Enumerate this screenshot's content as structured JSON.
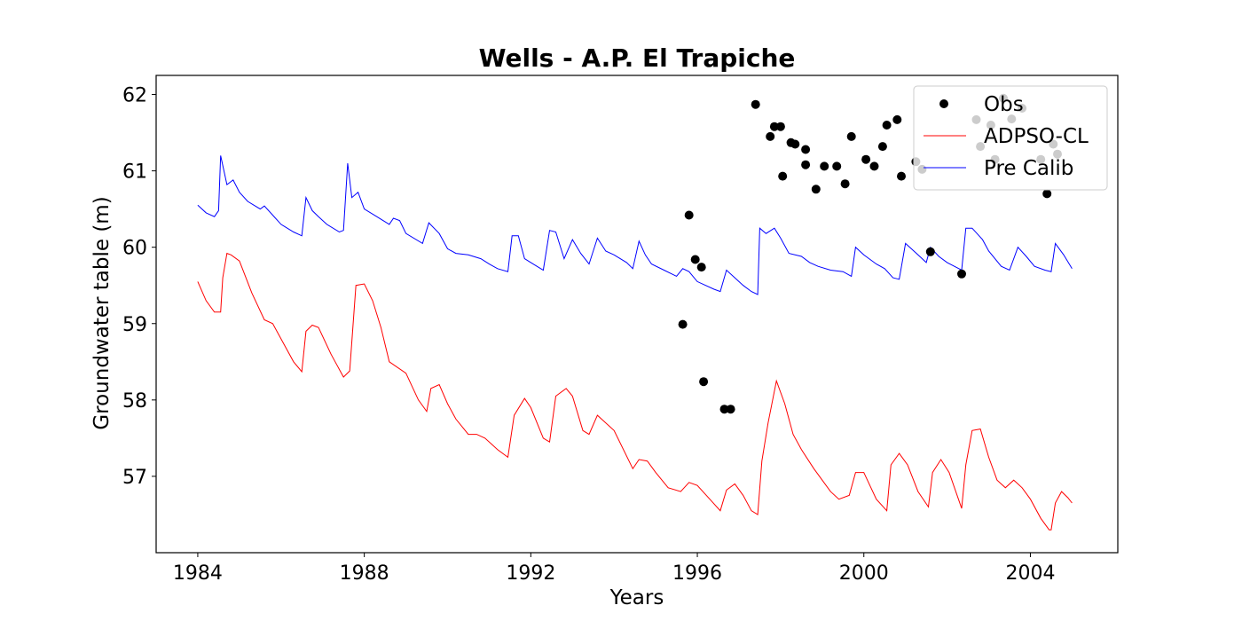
{
  "chart_data": {
    "type": "line",
    "title": "Wells - A.P. El Trapiche",
    "xlabel": "Years",
    "ylabel": "Groundwater table (m)",
    "xlim": [
      1983,
      2006.1
    ],
    "ylim": [
      56.0,
      62.25
    ],
    "x_ticks": [
      1984,
      1988,
      1992,
      1996,
      2000,
      2004
    ],
    "x_tick_labels": [
      "1984",
      "1988",
      "1992",
      "1996",
      "2000",
      "2004"
    ],
    "y_ticks": [
      57,
      58,
      59,
      60,
      61,
      62
    ],
    "y_tick_labels": [
      "57",
      "58",
      "59",
      "60",
      "61",
      "62"
    ],
    "grid": false,
    "legend_position": "top-right",
    "series": [
      {
        "name": "Obs",
        "kind": "scatter",
        "color": "#000000",
        "x": [
          1995.65,
          1995.8,
          1995.95,
          1996.1,
          1996.15,
          1996.65,
          1996.8,
          1997.4,
          1997.75,
          1997.85,
          1998.0,
          1998.05,
          1998.25,
          1998.35,
          1998.6,
          1998.6,
          1998.85,
          1999.05,
          1999.35,
          1999.55,
          1999.7,
          2000.05,
          2000.25,
          2000.45,
          2000.55,
          2000.8,
          2000.9,
          2001.25,
          2001.4,
          2001.6,
          2002.35,
          2002.7,
          2002.8,
          2003.05,
          2003.15,
          2003.35,
          2003.55,
          2003.8,
          2004.25,
          2004.4,
          2004.55,
          2004.65
        ],
        "values": [
          58.99,
          60.42,
          59.84,
          59.74,
          58.24,
          57.88,
          57.88,
          61.87,
          61.45,
          61.58,
          61.58,
          60.93,
          61.37,
          61.35,
          61.28,
          61.08,
          60.76,
          61.06,
          61.06,
          60.83,
          61.45,
          61.15,
          61.06,
          61.32,
          61.6,
          61.67,
          60.93,
          61.12,
          61.02,
          59.94,
          59.65,
          61.67,
          61.32,
          61.6,
          61.15,
          61.95,
          61.68,
          61.82,
          61.15,
          60.7,
          61.35,
          61.22
        ]
      },
      {
        "name": "ADPSO-CL",
        "kind": "line",
        "color": "#ff0000",
        "x": [
          1984.0,
          1984.2,
          1984.4,
          1984.55,
          1984.6,
          1984.7,
          1984.8,
          1985.0,
          1985.3,
          1985.6,
          1985.8,
          1986.0,
          1986.3,
          1986.5,
          1986.6,
          1986.75,
          1986.9,
          1987.2,
          1987.5,
          1987.65,
          1987.8,
          1988.0,
          1988.2,
          1988.4,
          1988.6,
          1989.0,
          1989.3,
          1989.5,
          1989.6,
          1989.8,
          1990.0,
          1990.2,
          1990.5,
          1990.7,
          1990.9,
          1991.2,
          1991.45,
          1991.6,
          1991.85,
          1992.0,
          1992.3,
          1992.45,
          1992.6,
          1992.85,
          1993.0,
          1993.25,
          1993.4,
          1993.6,
          1994.0,
          1994.45,
          1994.6,
          1994.8,
          1995.0,
          1995.3,
          1995.6,
          1995.8,
          1996.0,
          1996.3,
          1996.55,
          1996.7,
          1996.9,
          1997.1,
          1997.3,
          1997.45,
          1997.55,
          1997.7,
          1997.9,
          1998.1,
          1998.3,
          1998.5,
          1998.8,
          1999.0,
          1999.2,
          1999.4,
          1999.65,
          1999.8,
          2000.0,
          2000.3,
          2000.55,
          2000.65,
          2000.85,
          2001.05,
          2001.3,
          2001.55,
          2001.65,
          2001.85,
          2002.05,
          2002.35,
          2002.45,
          2002.6,
          2002.8,
          2003.0,
          2003.2,
          2003.4,
          2003.6,
          2003.8,
          2004.0,
          2004.25,
          2004.45,
          2004.5,
          2004.6,
          2004.75,
          2004.9,
          2005.0
        ],
        "values": [
          59.55,
          59.3,
          59.15,
          59.15,
          59.6,
          59.92,
          59.9,
          59.82,
          59.4,
          59.05,
          59.0,
          58.8,
          58.5,
          58.37,
          58.9,
          58.98,
          58.95,
          58.6,
          58.3,
          58.38,
          59.5,
          59.52,
          59.3,
          58.95,
          58.5,
          58.35,
          58.0,
          57.85,
          58.15,
          58.2,
          57.95,
          57.75,
          57.55,
          57.55,
          57.5,
          57.35,
          57.25,
          57.8,
          58.02,
          57.9,
          57.5,
          57.45,
          58.05,
          58.15,
          58.05,
          57.6,
          57.55,
          57.8,
          57.6,
          57.1,
          57.22,
          57.2,
          57.05,
          56.85,
          56.8,
          56.92,
          56.88,
          56.7,
          56.55,
          56.82,
          56.9,
          56.75,
          56.55,
          56.5,
          57.2,
          57.7,
          58.25,
          57.95,
          57.55,
          57.35,
          57.1,
          56.95,
          56.8,
          56.7,
          56.75,
          57.05,
          57.05,
          56.7,
          56.55,
          57.15,
          57.3,
          57.15,
          56.8,
          56.6,
          57.05,
          57.22,
          57.05,
          56.58,
          57.15,
          57.6,
          57.62,
          57.25,
          56.95,
          56.85,
          56.95,
          56.85,
          56.7,
          56.45,
          56.3,
          56.3,
          56.65,
          56.8,
          56.72,
          56.65
        ]
      },
      {
        "name": "Pre Calib",
        "kind": "line",
        "color": "#0000ff",
        "x": [
          1984.0,
          1984.2,
          1984.4,
          1984.5,
          1984.55,
          1984.7,
          1984.85,
          1985.0,
          1985.2,
          1985.5,
          1985.6,
          1985.8,
          1986.0,
          1986.3,
          1986.5,
          1986.6,
          1986.75,
          1986.9,
          1987.1,
          1987.4,
          1987.5,
          1987.6,
          1987.7,
          1987.85,
          1988.0,
          1988.3,
          1988.6,
          1988.7,
          1988.85,
          1989.0,
          1989.4,
          1989.55,
          1989.8,
          1990.0,
          1990.2,
          1990.5,
          1990.8,
          1991.0,
          1991.2,
          1991.45,
          1991.55,
          1991.7,
          1991.85,
          1992.0,
          1992.3,
          1992.45,
          1992.6,
          1992.8,
          1993.0,
          1993.2,
          1993.4,
          1993.6,
          1993.8,
          1994.0,
          1994.3,
          1994.45,
          1994.6,
          1994.75,
          1994.9,
          1995.2,
          1995.5,
          1995.65,
          1995.8,
          1996.0,
          1996.4,
          1996.55,
          1996.7,
          1996.9,
          1997.1,
          1997.3,
          1997.45,
          1997.5,
          1997.65,
          1997.85,
          1998.0,
          1998.2,
          1998.5,
          1998.7,
          1998.9,
          1999.2,
          1999.5,
          1999.7,
          1999.8,
          2000.0,
          2000.3,
          2000.5,
          2000.7,
          2000.85,
          2001.0,
          2001.3,
          2001.5,
          2001.6,
          2001.8,
          2002.0,
          2002.35,
          2002.45,
          2002.6,
          2002.85,
          2003.0,
          2003.3,
          2003.5,
          2003.7,
          2003.9,
          2004.1,
          2004.35,
          2004.5,
          2004.6,
          2004.8,
          2005.0
        ],
        "values": [
          60.55,
          60.45,
          60.4,
          60.48,
          61.2,
          60.82,
          60.88,
          60.72,
          60.6,
          60.5,
          60.54,
          60.42,
          60.3,
          60.2,
          60.15,
          60.65,
          60.48,
          60.4,
          60.3,
          60.2,
          60.22,
          61.1,
          60.65,
          60.72,
          60.5,
          60.4,
          60.3,
          60.38,
          60.35,
          60.18,
          60.05,
          60.32,
          60.18,
          59.98,
          59.92,
          59.9,
          59.85,
          59.78,
          59.72,
          59.68,
          60.15,
          60.15,
          59.85,
          59.8,
          59.7,
          60.22,
          60.2,
          59.85,
          60.1,
          59.92,
          59.78,
          60.12,
          59.95,
          59.9,
          59.8,
          59.72,
          60.08,
          59.9,
          59.78,
          59.7,
          59.62,
          59.72,
          59.68,
          59.55,
          59.45,
          59.42,
          59.7,
          59.6,
          59.5,
          59.42,
          59.38,
          60.25,
          60.18,
          60.25,
          60.12,
          59.92,
          59.88,
          59.8,
          59.75,
          59.7,
          59.68,
          59.62,
          60.0,
          59.9,
          59.78,
          59.72,
          59.6,
          59.58,
          60.05,
          59.9,
          59.8,
          60.0,
          59.88,
          59.8,
          59.7,
          60.25,
          60.25,
          60.1,
          59.95,
          59.75,
          59.7,
          60.0,
          59.88,
          59.75,
          59.7,
          59.68,
          60.05,
          59.9,
          59.72
        ]
      }
    ]
  }
}
